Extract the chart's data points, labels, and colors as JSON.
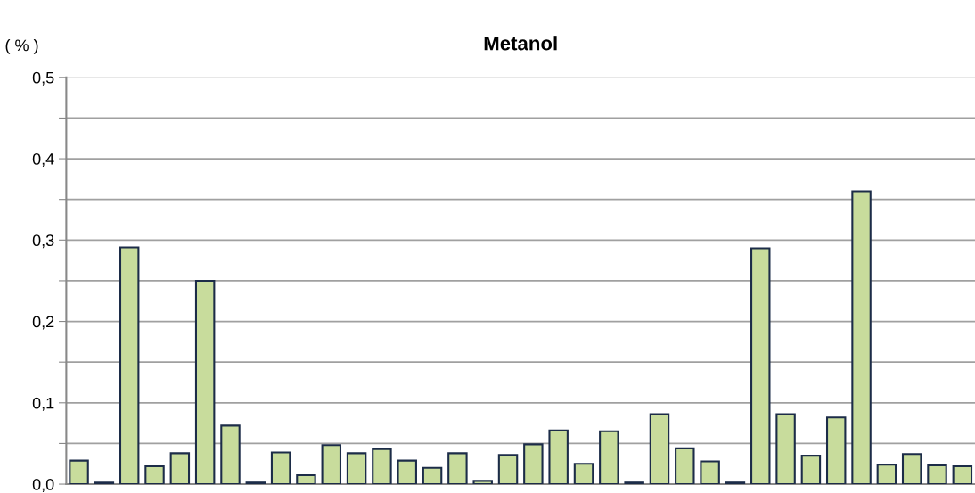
{
  "chart_data": {
    "type": "bar",
    "title": "Metanol",
    "ylabel": "( % )",
    "categories": [
      null,
      null,
      null,
      null,
      null,
      null,
      null,
      null,
      null,
      null,
      null,
      null,
      null,
      null,
      null,
      null,
      null,
      null,
      null,
      null,
      null,
      null,
      null,
      null,
      null,
      null,
      null,
      null,
      null,
      null,
      null,
      null,
      null,
      null,
      null,
      null
    ],
    "values": [
      0.029,
      0.002,
      0.291,
      0.022,
      0.038,
      0.25,
      0.072,
      0.002,
      0.039,
      0.011,
      0.048,
      0.038,
      0.043,
      0.029,
      0.02,
      0.038,
      0.004,
      0.036,
      0.049,
      0.066,
      0.025,
      0.065,
      0.002,
      0.086,
      0.044,
      0.028,
      0.002,
      0.29,
      0.086,
      0.035,
      0.082,
      0.36,
      0.024,
      0.037,
      0.023,
      0.022
    ],
    "color": "#c8dc9c",
    "ylim": [
      0,
      0.5
    ],
    "yticks": [
      {
        "value": 0,
        "label": "0,0"
      },
      {
        "value": 0.05,
        "label": null
      },
      {
        "value": 0.1,
        "label": "0,1"
      },
      {
        "value": 0.15,
        "label": null
      },
      {
        "value": 0.2,
        "label": "0,2"
      },
      {
        "value": 0.25,
        "label": null
      },
      {
        "value": 0.3,
        "label": "0,3"
      },
      {
        "value": 0.35,
        "label": null
      },
      {
        "value": 0.4,
        "label": "0,4"
      },
      {
        "value": 0.45,
        "label": null
      },
      {
        "value": 0.5,
        "label": "0,5"
      }
    ],
    "grid": "y",
    "tick_labels": "y"
  }
}
